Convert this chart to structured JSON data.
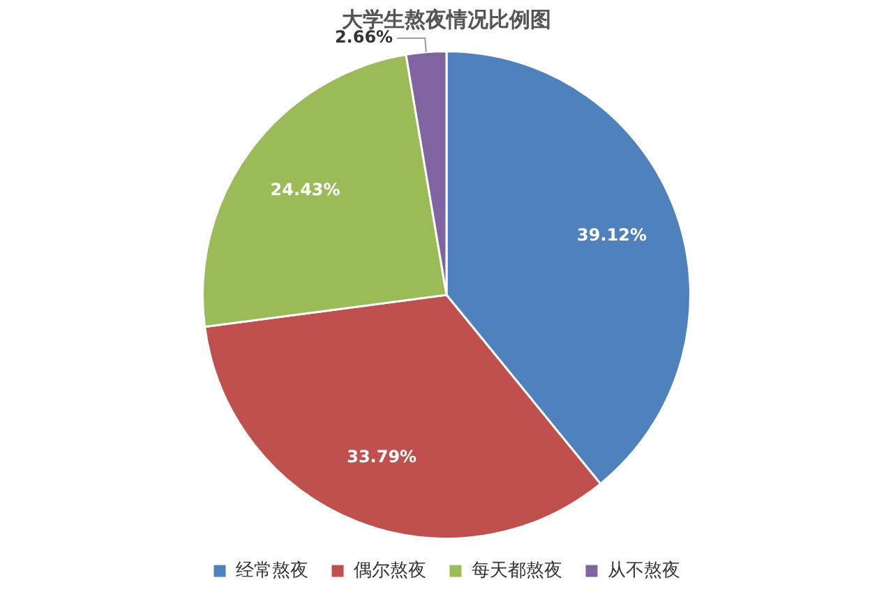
{
  "chart_data": {
    "type": "pie",
    "title": "大学生熬夜情况比例图",
    "categories": [
      "经常熬夜",
      "偶尔熬夜",
      "每天都熬夜",
      "从不熬夜"
    ],
    "values": [
      39.12,
      33.79,
      24.43,
      2.66
    ],
    "colors": [
      "#4f81bd",
      "#c0504d",
      "#9bbb59",
      "#8064a2"
    ],
    "value_labels": [
      "39.12%",
      "33.79%",
      "24.43%",
      "2.66%"
    ],
    "legend": "bottom"
  }
}
